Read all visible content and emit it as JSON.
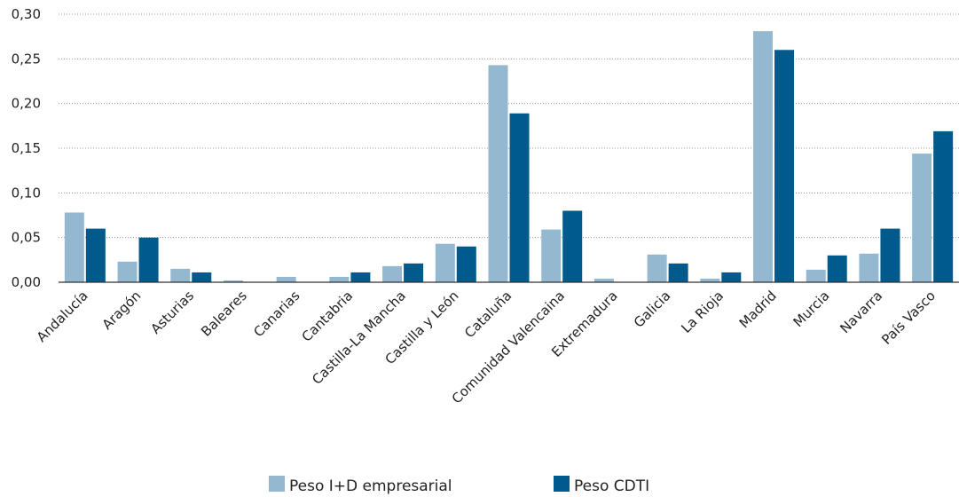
{
  "chart_data": {
    "type": "bar",
    "title": "",
    "xlabel": "",
    "ylabel": "",
    "ylim": [
      0,
      0.3
    ],
    "yticks": [
      "0,00",
      "0,05",
      "0,10",
      "0,15",
      "0,20",
      "0,25",
      "0,30"
    ],
    "grid": true,
    "legend_position": "bottom-center",
    "categories": [
      "Andalucía",
      "Aragón",
      "Asturias",
      "Baleares",
      "Canarias",
      "Cantabria",
      "Castilla-La Mancha",
      "Castilla y León",
      "Cataluña",
      "Comunidad Valencaina",
      "Extremadura",
      "Galicia",
      "La Rioja",
      "Madrid",
      "Murcia",
      "Navarra",
      "País Vasco"
    ],
    "series": [
      {
        "name": "Peso I+D empresarial",
        "color": "#95b8d1",
        "values": [
          0.078,
          0.023,
          0.015,
          0.002,
          0.006,
          0.006,
          0.018,
          0.043,
          0.243,
          0.059,
          0.004,
          0.031,
          0.004,
          0.281,
          0.014,
          0.032,
          0.144
        ]
      },
      {
        "name": "Peso CDTI",
        "color": "#005a8c",
        "values": [
          0.06,
          0.05,
          0.011,
          0.0,
          0.0,
          0.011,
          0.021,
          0.04,
          0.189,
          0.08,
          0.0,
          0.021,
          0.011,
          0.26,
          0.03,
          0.06,
          0.169
        ]
      }
    ]
  }
}
